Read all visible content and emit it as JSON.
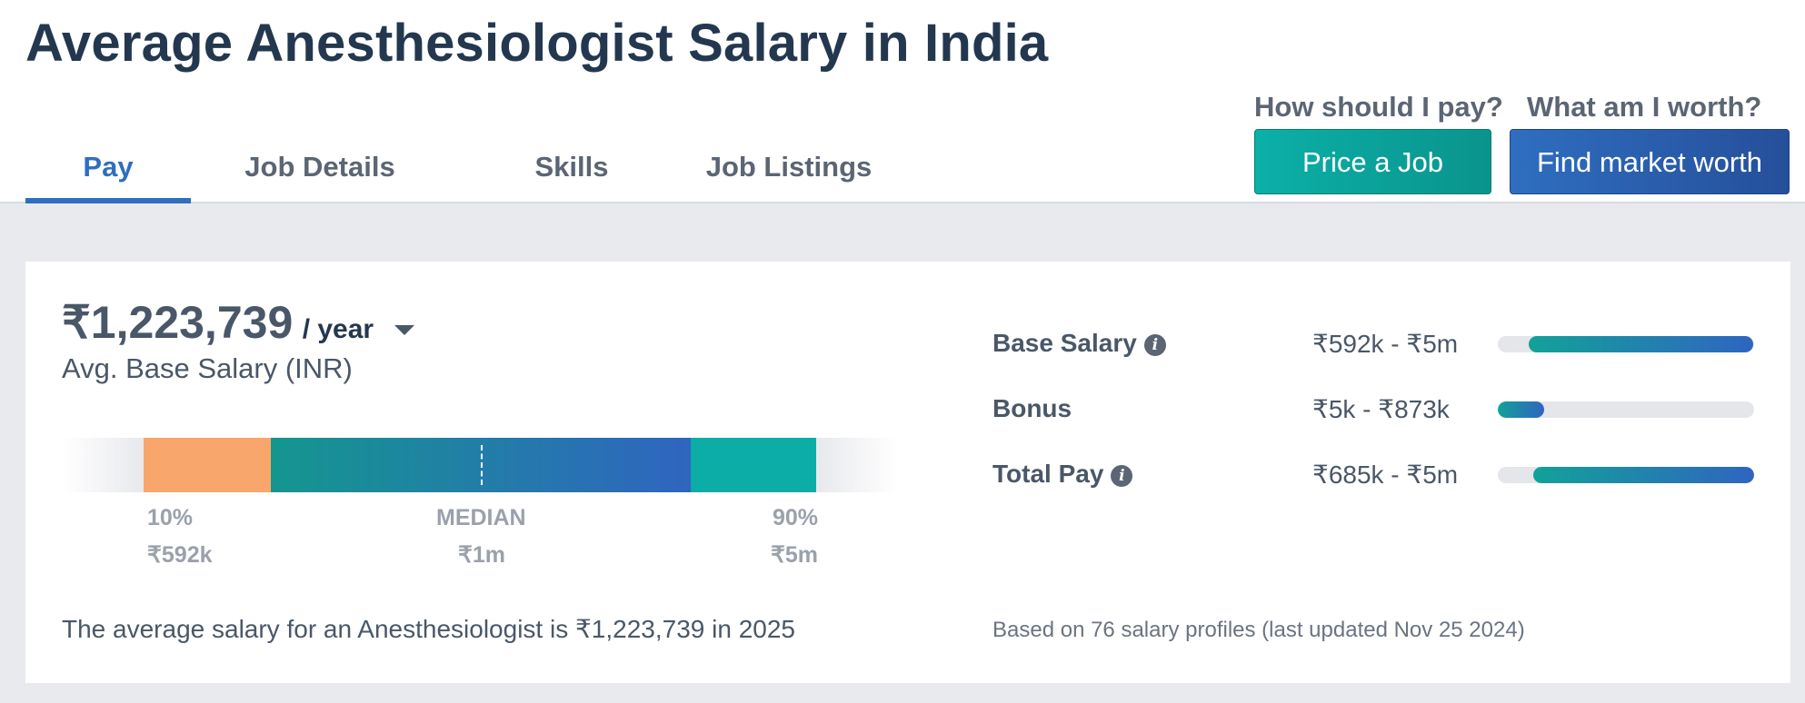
{
  "header": {
    "title": "Average Anesthesiologist Salary in India",
    "tabs": [
      {
        "label": "Pay",
        "active": true
      },
      {
        "label": "Job Details",
        "active": false
      },
      {
        "label": "Skills",
        "active": false
      },
      {
        "label": "Job Listings",
        "active": false
      }
    ],
    "cta": {
      "pay_question": "How should I pay?",
      "worth_question": "What am I worth?",
      "price_button": "Price a Job",
      "worth_button": "Find market worth"
    }
  },
  "salary": {
    "amount": "₹1,223,739",
    "period": "/ year",
    "caption": "Avg. Base Salary (INR)",
    "distribution": {
      "p10_label": "10%",
      "p10_value": "₹592k",
      "median_label": "MEDIAN",
      "median_value": "₹1m",
      "p90_label": "90%",
      "p90_value": "₹5m"
    },
    "summary": "The average salary for an Anesthesiologist is ₹1,223,739 in 2025"
  },
  "breakdown": [
    {
      "label": "Base Salary",
      "info": true,
      "range": "₹592k - ₹5m",
      "bar_start": 0.12,
      "bar_end": 0.995
    },
    {
      "label": "Bonus",
      "info": false,
      "range": "₹5k - ₹873k",
      "bar_start": 0.0,
      "bar_end": 0.18
    },
    {
      "label": "Total Pay",
      "info": true,
      "range": "₹685k - ₹5m",
      "bar_start": 0.14,
      "bar_end": 1.0
    }
  ],
  "footnote": "Based on 76 salary profiles (last updated Nov 25 2024)",
  "colors": {
    "accent_blue": "#2f6ec0",
    "accent_teal": "#0bada6",
    "percentile_low": "#f8a66c",
    "title": "#23384f"
  }
}
